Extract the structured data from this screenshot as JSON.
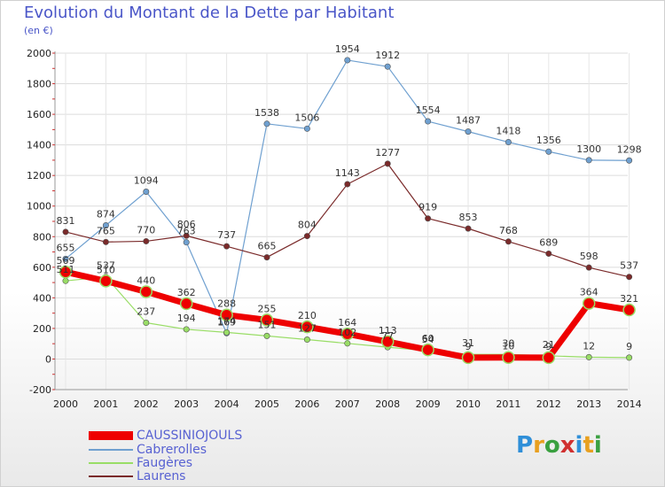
{
  "header": {
    "title": "Evolution du Montant de la Dette par Habitant",
    "subtitle": "(en €)"
  },
  "logo": {
    "text": "Proxiti"
  },
  "colors": {
    "title": "#4a56c8",
    "caussiniojouls": "#ee0000",
    "cabrerolles": "#6fa0d0",
    "faugeres": "#99dd66",
    "laurens": "#7a2a2a"
  },
  "chart_data": {
    "type": "line",
    "title": "Evolution du Montant de la Dette par Habitant",
    "subtitle": "(en €)",
    "xlabel": "",
    "ylabel": "",
    "x": [
      "2000",
      "2001",
      "2002",
      "2003",
      "2004",
      "2005",
      "2006",
      "2007",
      "2008",
      "2009",
      "2010",
      "2011",
      "2012",
      "2013",
      "2014"
    ],
    "ylim": [
      -200,
      2000
    ],
    "yticks": [
      -200,
      0,
      200,
      400,
      600,
      800,
      1000,
      1200,
      1400,
      1600,
      1800,
      2000
    ],
    "grid": true,
    "legend": "bottom-left",
    "series": [
      {
        "name": "Cabrerolles",
        "color": "#6fa0d0",
        "width": 1.2,
        "marker": 3.2,
        "values": [
          655,
          874,
          1094,
          763,
          169,
          1538,
          1506,
          1954,
          1912,
          1554,
          1487,
          1418,
          1356,
          1300,
          1298
        ],
        "labels": [
          "655",
          "874",
          "1094",
          "763",
          "169",
          "1538",
          "1506",
          "1954",
          "1912",
          "1554",
          "1487",
          "1418",
          "1356",
          "1300",
          "1298"
        ]
      },
      {
        "name": "Laurens",
        "color": "#7a2a2a",
        "width": 1.2,
        "marker": 3.2,
        "values": [
          831,
          765,
          770,
          806,
          737,
          665,
          804,
          1143,
          1277,
          919,
          853,
          768,
          689,
          598,
          537
        ],
        "labels": [
          "831",
          "765",
          "770",
          "806",
          "737",
          "665",
          "804",
          "1143",
          "1277",
          "919",
          "853",
          "768",
          "689",
          "598",
          "537"
        ]
      },
      {
        "name": "Faugères",
        "color": "#99dd66",
        "width": 1.2,
        "marker": 3.2,
        "values": [
          511,
          537,
          237,
          194,
          174,
          151,
          127,
          102,
          77,
          54,
          31,
          30,
          21,
          12,
          9
        ],
        "labels": [
          "511",
          "537",
          "237",
          "194",
          "174",
          "151",
          "127",
          "102",
          "77",
          "54",
          "31",
          "30",
          "21",
          "12",
          "9"
        ]
      },
      {
        "name": "CAUSSINIOJOULS",
        "color": "#ee0000",
        "width": 7,
        "marker": 6.5,
        "values": [
          569,
          510,
          440,
          362,
          288,
          255,
          210,
          164,
          113,
          60,
          9,
          10,
          9,
          364,
          321
        ],
        "labels": [
          "569",
          "510",
          "440",
          "362",
          "288",
          "255",
          "210",
          "164",
          "113",
          "60",
          "9",
          "10",
          "9",
          "364",
          "321"
        ]
      }
    ],
    "legend_entries": [
      "CAUSSINIOJOULS",
      "Cabrerolles",
      "Faugères",
      "Laurens"
    ]
  }
}
